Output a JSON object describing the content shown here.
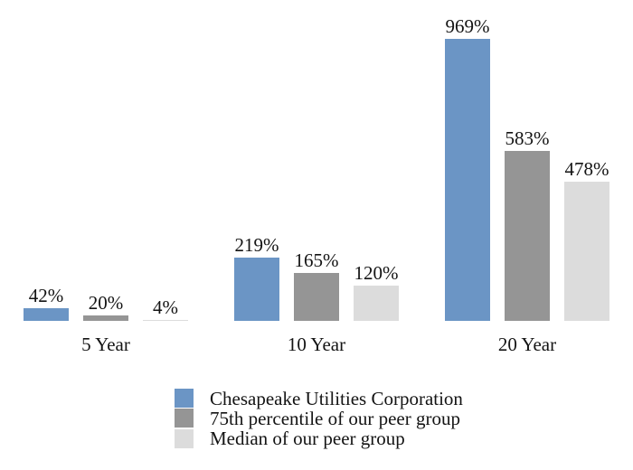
{
  "chart_data": {
    "type": "bar",
    "title": "",
    "categories": [
      "5 Year",
      "10 Year",
      "20 Year"
    ],
    "series": [
      {
        "name": "Chesapeake Utilities Corporation",
        "color": "#6B95C5",
        "values": [
          42,
          219,
          969
        ],
        "labels": [
          "42%",
          "219%",
          "969%"
        ]
      },
      {
        "name": "75th percentile of our peer group",
        "color": "#959595",
        "values": [
          20,
          165,
          583
        ],
        "labels": [
          "20%",
          "165%",
          "583%"
        ]
      },
      {
        "name": "Median of our peer group",
        "color": "#DCDCDC",
        "values": [
          4,
          120,
          478
        ],
        "labels": [
          "4%",
          "120%",
          "478%"
        ]
      }
    ],
    "value_suffix": "%",
    "ylim": [
      0,
      969
    ],
    "grid": false,
    "axes_visible": false,
    "legend_position": "bottom"
  },
  "colors": {
    "background": "#ffffff",
    "text": "#141414"
  }
}
